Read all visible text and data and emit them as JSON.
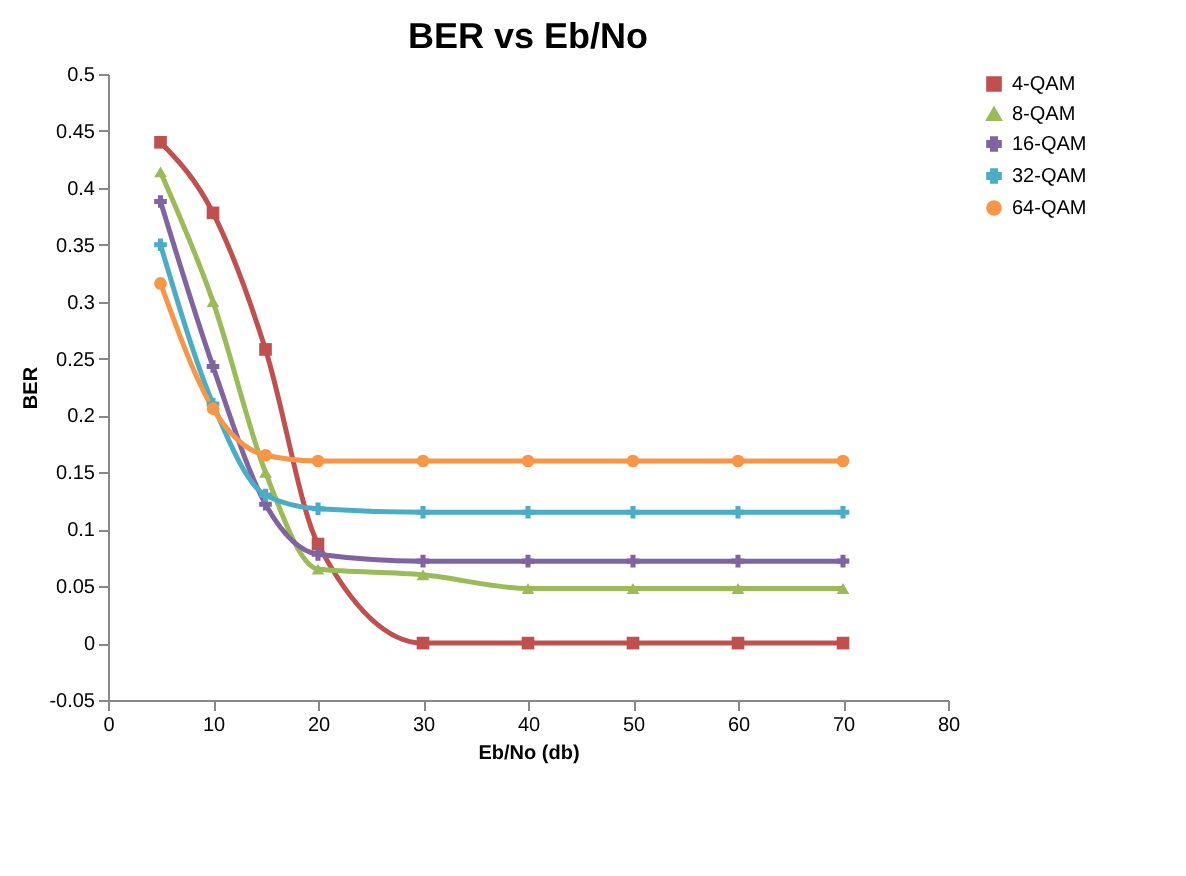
{
  "chart_data": {
    "type": "line",
    "title": "BER vs Eb/No",
    "xlabel": "Eb/No (db)",
    "ylabel": "BER",
    "x": [
      5,
      10,
      15,
      20,
      30,
      40,
      50,
      60,
      70
    ],
    "xlim": [
      0,
      80
    ],
    "xticks": [
      0,
      10,
      20,
      30,
      40,
      50,
      60,
      70,
      80
    ],
    "ylim": [
      -0.05,
      0.5
    ],
    "yticks": [
      -0.05,
      0,
      0.05,
      0.1,
      0.15,
      0.2,
      0.25,
      0.3,
      0.35,
      0.4,
      0.45,
      0.5
    ],
    "grid": false,
    "legend": "right",
    "series": [
      {
        "name": "4-QAM",
        "color": "#c0504d",
        "marker": "square",
        "values": [
          0.44,
          0.378,
          0.258,
          0.087,
          0,
          0,
          0,
          0,
          0
        ]
      },
      {
        "name": "8-QAM",
        "color": "#9bbb59",
        "marker": "triangle",
        "values": [
          0.414,
          0.3,
          0.15,
          0.065,
          0.06,
          0.048,
          0.048,
          0.048,
          0.048
        ]
      },
      {
        "name": "16-QAM",
        "color": "#8064a2",
        "marker": "cross",
        "values": [
          0.388,
          0.243,
          0.122,
          0.078,
          0.072,
          0.072,
          0.072,
          0.072,
          0.072
        ]
      },
      {
        "name": "32-QAM",
        "color": "#4bacc6",
        "marker": "cross",
        "values": [
          0.35,
          0.21,
          0.13,
          0.118,
          0.115,
          0.115,
          0.115,
          0.115,
          0.115
        ]
      },
      {
        "name": "64-QAM",
        "color": "#f79646",
        "marker": "circle",
        "values": [
          0.316,
          0.206,
          0.165,
          0.16,
          0.16,
          0.16,
          0.16,
          0.16,
          0.16
        ]
      }
    ]
  }
}
